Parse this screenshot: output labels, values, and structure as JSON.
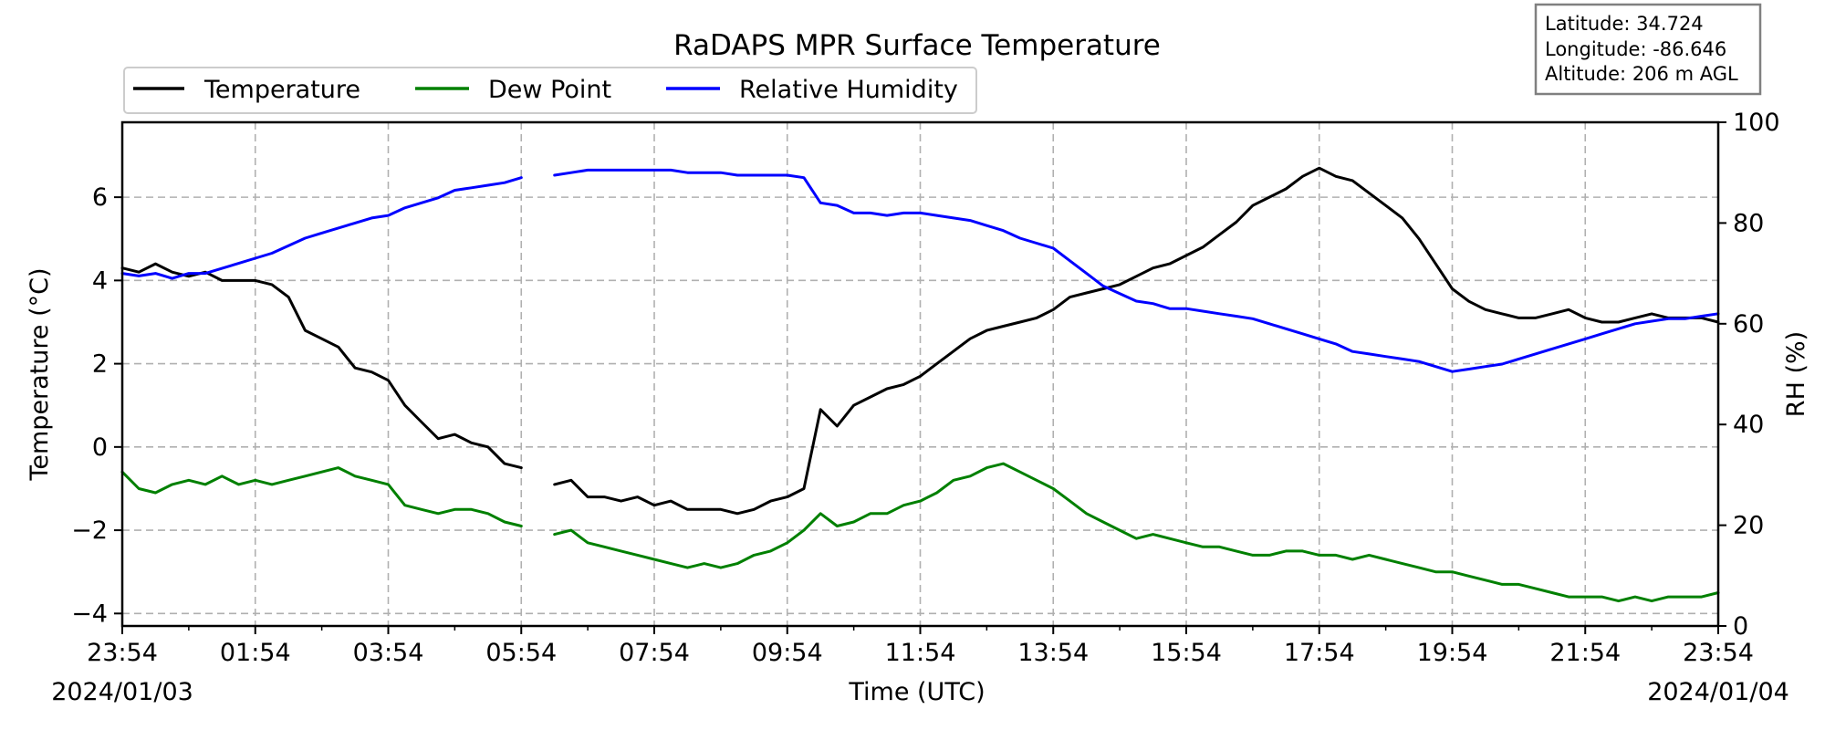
{
  "chart_data": {
    "type": "line",
    "title": "RaDAPS MPR Surface Temperature",
    "xlabel": "Time (UTC)",
    "ylabel": "Temperature ($^\\circ$C)",
    "ylabel_display": "Temperature (°C)",
    "y2label": "RH (%)",
    "ylim": [
      -4.3,
      7.8
    ],
    "y2lim": [
      0,
      100
    ],
    "yticks": [
      -4,
      -2,
      0,
      2,
      4,
      6
    ],
    "y2ticks": [
      0,
      20,
      40,
      60,
      80,
      100
    ],
    "xlim": [
      "2024-01-03T23:54",
      "2024-01-04T23:54"
    ],
    "xticks": [
      "23:54",
      "01:54",
      "03:54",
      "05:54",
      "07:54",
      "09:54",
      "11:54",
      "13:54",
      "15:54",
      "17:54",
      "19:54",
      "21:54",
      "23:54"
    ],
    "date_left": "2024/01/03",
    "date_right": "2024/01/04",
    "grid": true,
    "legend_position": "top-left",
    "info_box": [
      "Latitude: 34.724",
      "Longitude: -86.646",
      "Altitude: 206 m AGL"
    ],
    "x_units": "hours after 2024-01-03 23:54 UTC",
    "series": [
      {
        "name": "Temperature",
        "axis": "left",
        "color": "#000000",
        "x": [
          0,
          0.25,
          0.5,
          0.75,
          1.0,
          1.25,
          1.5,
          1.75,
          2.0,
          2.25,
          2.5,
          2.75,
          3.0,
          3.25,
          3.5,
          3.75,
          4.0,
          4.25,
          4.5,
          4.75,
          5.0,
          5.25,
          5.5,
          5.75,
          6.0,
          6.25,
          6.5,
          6.75,
          7.0,
          7.25,
          7.5,
          7.75,
          8.0,
          8.25,
          8.5,
          8.75,
          9.0,
          9.25,
          9.5,
          9.75,
          10.0,
          10.25,
          10.5,
          10.75,
          11.0,
          11.25,
          11.5,
          11.75,
          12.0,
          12.25,
          12.5,
          12.75,
          13.0,
          13.25,
          13.5,
          13.75,
          14.0,
          14.25,
          14.5,
          14.75,
          15.0,
          15.25,
          15.5,
          15.75,
          16.0,
          16.25,
          16.5,
          16.75,
          17.0,
          17.25,
          17.5,
          17.75,
          18.0,
          18.25,
          18.5,
          18.75,
          19.0,
          19.25,
          19.5,
          19.75,
          20.0,
          20.25,
          20.5,
          20.75,
          21.0,
          21.25,
          21.5,
          21.75,
          22.0,
          22.25,
          22.5,
          22.75,
          23.0,
          23.25,
          23.5,
          23.75,
          24.0
        ],
        "values": [
          4.3,
          4.2,
          4.4,
          4.2,
          4.1,
          4.2,
          4.0,
          4.0,
          4.0,
          3.9,
          3.6,
          2.8,
          2.6,
          2.4,
          1.9,
          1.8,
          1.6,
          1.0,
          0.6,
          0.2,
          0.3,
          0.1,
          0.0,
          -0.4,
          -0.5,
          null,
          -0.9,
          -0.8,
          -1.2,
          -1.2,
          -1.3,
          -1.2,
          -1.4,
          -1.3,
          -1.5,
          -1.5,
          -1.5,
          -1.6,
          -1.5,
          -1.3,
          -1.2,
          -1.0,
          0.9,
          0.5,
          1.0,
          1.2,
          1.4,
          1.5,
          1.7,
          2.0,
          2.3,
          2.6,
          2.8,
          2.9,
          3.0,
          3.1,
          3.3,
          3.6,
          3.7,
          3.8,
          3.9,
          4.1,
          4.3,
          4.4,
          4.6,
          4.8,
          5.1,
          5.4,
          5.8,
          6.0,
          6.2,
          6.5,
          6.7,
          6.5,
          6.4,
          6.1,
          5.8,
          5.5,
          5.0,
          4.4,
          3.8,
          3.5,
          3.3,
          3.2,
          3.1,
          3.1,
          3.2,
          3.3,
          3.1,
          3.0,
          3.0,
          3.1,
          3.2,
          3.1,
          3.1,
          3.1,
          3.0
        ]
      },
      {
        "name": "Dew Point",
        "axis": "left",
        "color": "#008000",
        "x": [
          0,
          0.25,
          0.5,
          0.75,
          1.0,
          1.25,
          1.5,
          1.75,
          2.0,
          2.25,
          2.5,
          2.75,
          3.0,
          3.25,
          3.5,
          3.75,
          4.0,
          4.25,
          4.5,
          4.75,
          5.0,
          5.25,
          5.5,
          5.75,
          6.0,
          6.25,
          6.5,
          6.75,
          7.0,
          7.25,
          7.5,
          7.75,
          8.0,
          8.25,
          8.5,
          8.75,
          9.0,
          9.25,
          9.5,
          9.75,
          10.0,
          10.25,
          10.5,
          10.75,
          11.0,
          11.25,
          11.5,
          11.75,
          12.0,
          12.25,
          12.5,
          12.75,
          13.0,
          13.25,
          13.5,
          13.75,
          14.0,
          14.25,
          14.5,
          14.75,
          15.0,
          15.25,
          15.5,
          15.75,
          16.0,
          16.25,
          16.5,
          16.75,
          17.0,
          17.25,
          17.5,
          17.75,
          18.0,
          18.25,
          18.5,
          18.75,
          19.0,
          19.25,
          19.5,
          19.75,
          20.0,
          20.25,
          20.5,
          20.75,
          21.0,
          21.25,
          21.5,
          21.75,
          22.0,
          22.25,
          22.5,
          22.75,
          23.0,
          23.25,
          23.5,
          23.75,
          24.0
        ],
        "values": [
          -0.6,
          -1.0,
          -1.1,
          -0.9,
          -0.8,
          -0.9,
          -0.7,
          -0.9,
          -0.8,
          -0.9,
          -0.8,
          -0.7,
          -0.6,
          -0.5,
          -0.7,
          -0.8,
          -0.9,
          -1.4,
          -1.5,
          -1.6,
          -1.5,
          -1.5,
          -1.6,
          -1.8,
          -1.9,
          null,
          -2.1,
          -2.0,
          -2.3,
          -2.4,
          -2.5,
          -2.6,
          -2.7,
          -2.8,
          -2.9,
          -2.8,
          -2.9,
          -2.8,
          -2.6,
          -2.5,
          -2.3,
          -2.0,
          -1.6,
          -1.9,
          -1.8,
          -1.6,
          -1.6,
          -1.4,
          -1.3,
          -1.1,
          -0.8,
          -0.7,
          -0.5,
          -0.4,
          -0.6,
          -0.8,
          -1.0,
          -1.3,
          -1.6,
          -1.8,
          -2.0,
          -2.2,
          -2.1,
          -2.2,
          -2.3,
          -2.4,
          -2.4,
          -2.5,
          -2.6,
          -2.6,
          -2.5,
          -2.5,
          -2.6,
          -2.6,
          -2.7,
          -2.6,
          -2.7,
          -2.8,
          -2.9,
          -3.0,
          -3.0,
          -3.1,
          -3.2,
          -3.3,
          -3.3,
          -3.4,
          -3.5,
          -3.6,
          -3.6,
          -3.6,
          -3.7,
          -3.6,
          -3.7,
          -3.6,
          -3.6,
          -3.6,
          -3.5
        ]
      },
      {
        "name": "Relative Humidity",
        "axis": "right",
        "color": "#0000ff",
        "x": [
          0,
          0.25,
          0.5,
          0.75,
          1.0,
          1.25,
          1.5,
          1.75,
          2.0,
          2.25,
          2.5,
          2.75,
          3.0,
          3.25,
          3.5,
          3.75,
          4.0,
          4.25,
          4.5,
          4.75,
          5.0,
          5.25,
          5.5,
          5.75,
          6.0,
          6.25,
          6.5,
          6.75,
          7.0,
          7.25,
          7.5,
          7.75,
          8.0,
          8.25,
          8.5,
          8.75,
          9.0,
          9.25,
          9.5,
          9.75,
          10.0,
          10.25,
          10.5,
          10.75,
          11.0,
          11.25,
          11.5,
          11.75,
          12.0,
          12.25,
          12.5,
          12.75,
          13.0,
          13.25,
          13.5,
          13.75,
          14.0,
          14.25,
          14.5,
          14.75,
          15.0,
          15.25,
          15.5,
          15.75,
          16.0,
          16.25,
          16.5,
          16.75,
          17.0,
          17.25,
          17.5,
          17.75,
          18.0,
          18.25,
          18.5,
          18.75,
          19.0,
          19.25,
          19.5,
          19.75,
          20.0,
          20.25,
          20.5,
          20.75,
          21.0,
          21.25,
          21.5,
          21.75,
          22.0,
          22.25,
          22.5,
          22.75,
          23.0,
          23.25,
          23.5,
          23.75,
          24.0
        ],
        "values": [
          70.0,
          69.5,
          70.0,
          69.0,
          70.0,
          70.0,
          71.0,
          72.0,
          73.0,
          74.0,
          75.5,
          77.0,
          78.0,
          79.0,
          80.0,
          81.0,
          81.5,
          83.0,
          84.0,
          85.0,
          86.5,
          87.0,
          87.5,
          88.0,
          89.0,
          null,
          89.5,
          90.0,
          90.5,
          90.5,
          90.5,
          90.5,
          90.5,
          90.5,
          90.0,
          90.0,
          90.0,
          89.5,
          89.5,
          89.5,
          89.5,
          89.0,
          84.0,
          83.5,
          82.0,
          82.0,
          81.5,
          82.0,
          82.0,
          81.5,
          81.0,
          80.5,
          79.5,
          78.5,
          77.0,
          76.0,
          75.0,
          72.5,
          70.0,
          67.5,
          66.0,
          64.5,
          64.0,
          63.0,
          63.0,
          62.5,
          62.0,
          61.5,
          61.0,
          60.0,
          59.0,
          58.0,
          57.0,
          56.0,
          54.5,
          54.0,
          53.5,
          53.0,
          52.5,
          51.5,
          50.5,
          51.0,
          51.5,
          52.0,
          53.0,
          54.0,
          55.0,
          56.0,
          57.0,
          58.0,
          59.0,
          60.0,
          60.5,
          61.0,
          61.0,
          61.5,
          62.0
        ]
      }
    ]
  }
}
